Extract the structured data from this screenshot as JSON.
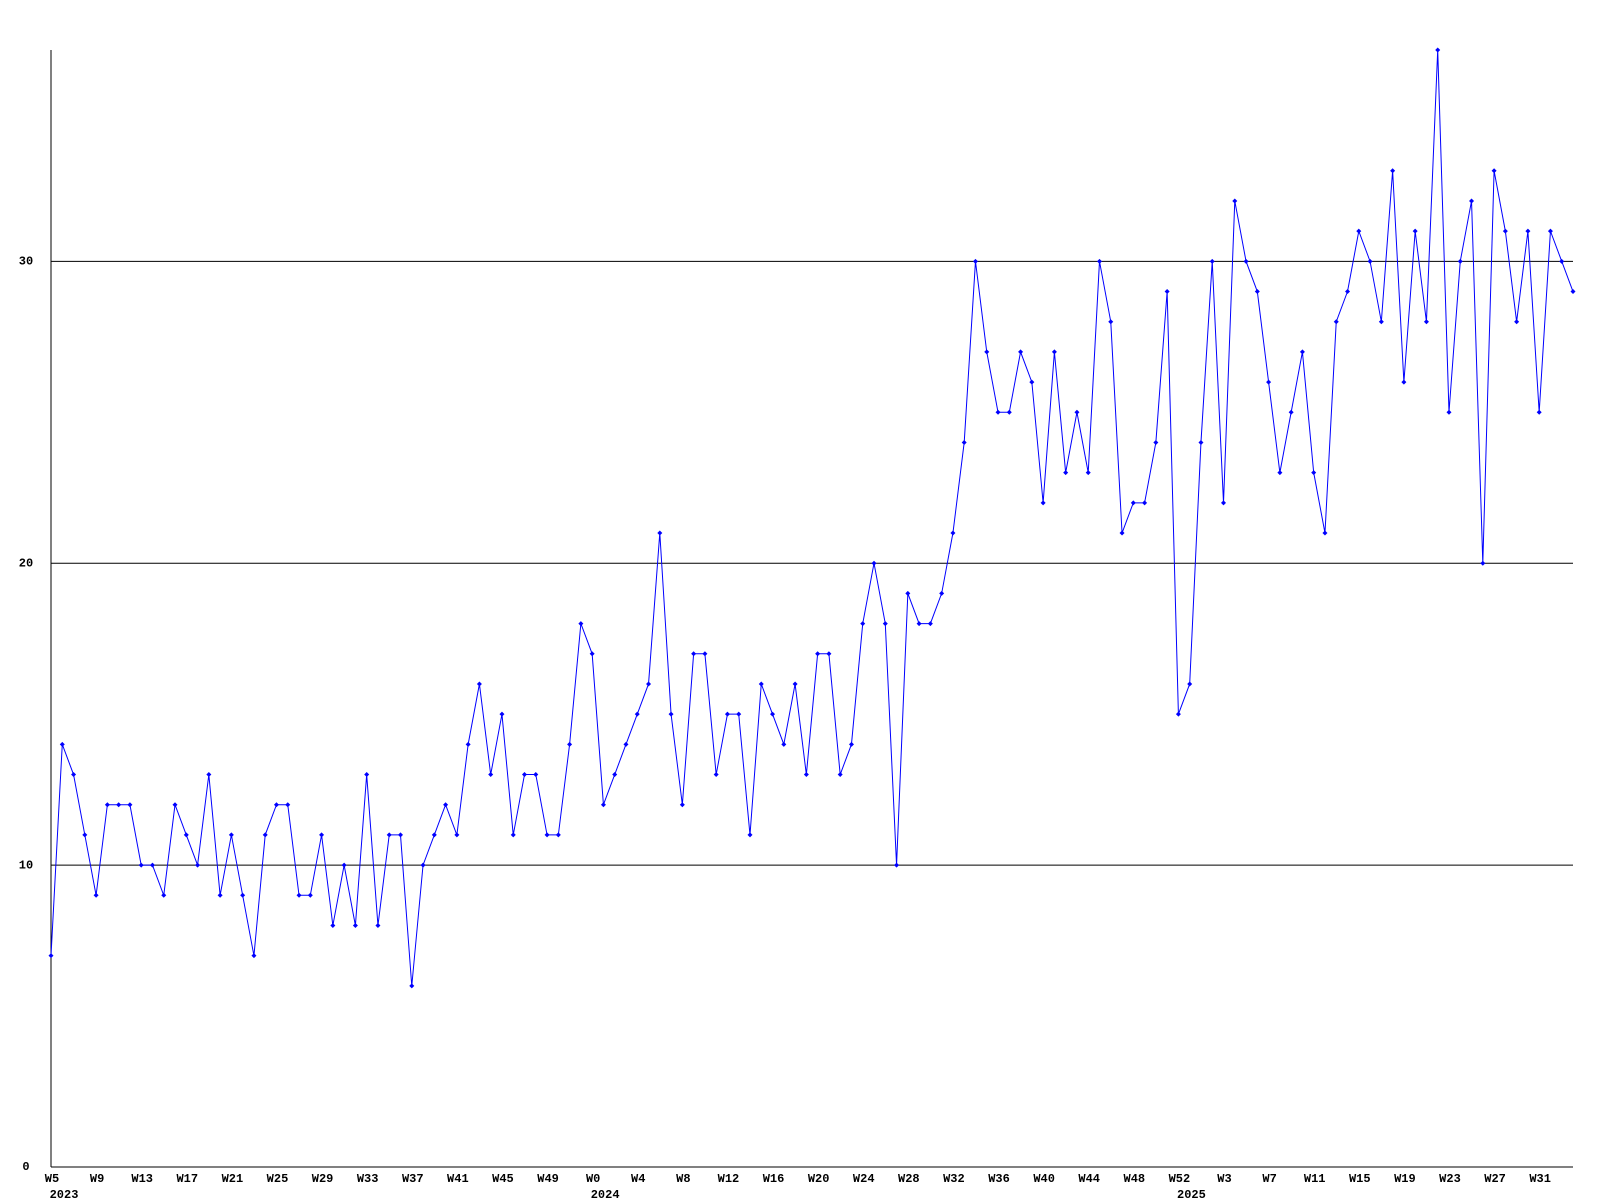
{
  "chart_data": {
    "type": "line",
    "categories": [
      "W5",
      null,
      null,
      null,
      "W9",
      null,
      null,
      null,
      "W13",
      null,
      null,
      null,
      "W17",
      null,
      null,
      null,
      "W21",
      null,
      null,
      null,
      "W25",
      null,
      null,
      null,
      "W29",
      null,
      null,
      null,
      "W33",
      null,
      null,
      null,
      "W37",
      null,
      null,
      null,
      "W41",
      null,
      null,
      null,
      "W45",
      null,
      null,
      null,
      "W49",
      null,
      null,
      null,
      "W0",
      null,
      null,
      null,
      "W4",
      null,
      null,
      null,
      "W8",
      null,
      null,
      null,
      "W12",
      null,
      null,
      null,
      "W16",
      null,
      null,
      null,
      "W20",
      null,
      null,
      null,
      "W24",
      null,
      null,
      null,
      "W28",
      null,
      null,
      null,
      "W32",
      null,
      null,
      null,
      "W36",
      null,
      null,
      null,
      "W40",
      null,
      null,
      null,
      "W44",
      null,
      null,
      null,
      "W48",
      null,
      null,
      null,
      "W52",
      null,
      null,
      null,
      "W3",
      null,
      null,
      null,
      "W7",
      null,
      null,
      null,
      "W11",
      null,
      null,
      null,
      "W15",
      null,
      null,
      null,
      "W19",
      null,
      null,
      null,
      "W23",
      null,
      null,
      null,
      "W27",
      null,
      null,
      null,
      "W31",
      null,
      null,
      null
    ],
    "category_years": [
      "2023",
      null,
      null,
      null,
      null,
      null,
      null,
      null,
      null,
      null,
      null,
      null,
      null,
      null,
      null,
      null,
      null,
      null,
      null,
      null,
      null,
      null,
      null,
      null,
      null,
      null,
      null,
      null,
      null,
      null,
      null,
      null,
      null,
      null,
      null,
      null,
      null,
      null,
      null,
      null,
      null,
      null,
      null,
      null,
      null,
      null,
      null,
      null,
      "2024",
      null,
      null,
      null,
      null,
      null,
      null,
      null,
      null,
      null,
      null,
      null,
      null,
      null,
      null,
      null,
      null,
      null,
      null,
      null,
      null,
      null,
      null,
      null,
      null,
      null,
      null,
      null,
      null,
      null,
      null,
      null,
      null,
      null,
      null,
      null,
      null,
      null,
      null,
      null,
      null,
      null,
      null,
      null,
      null,
      null,
      null,
      null,
      null,
      null,
      null,
      null,
      "2025",
      null,
      null,
      null,
      null,
      null,
      null,
      null,
      null,
      null,
      null,
      null,
      null,
      null,
      null,
      null,
      null,
      null,
      null,
      null,
      null,
      null,
      null,
      null,
      null,
      null,
      null,
      null,
      null,
      null,
      null,
      null,
      null,
      null,
      null,
      null
    ],
    "values": [
      7,
      14,
      13,
      11,
      9,
      12,
      12,
      12,
      10,
      10,
      9,
      12,
      11,
      10,
      13,
      9,
      11,
      9,
      7,
      11,
      12,
      12,
      9,
      9,
      11,
      8,
      10,
      8,
      13,
      8,
      11,
      11,
      6,
      10,
      11,
      12,
      11,
      14,
      16,
      13,
      15,
      11,
      13,
      13,
      11,
      11,
      14,
      18,
      17,
      12,
      13,
      14,
      15,
      16,
      21,
      15,
      12,
      17,
      17,
      13,
      15,
      15,
      11,
      16,
      15,
      14,
      16,
      13,
      17,
      17,
      13,
      14,
      18,
      20,
      18,
      10,
      19,
      18,
      18,
      19,
      21,
      24,
      30,
      27,
      25,
      25,
      27,
      26,
      22,
      27,
      23,
      25,
      23,
      30,
      28,
      21,
      22,
      22,
      24,
      29,
      15,
      16,
      24,
      30,
      22,
      32,
      30,
      29,
      26,
      23,
      25,
      27,
      23,
      21,
      28,
      29,
      31,
      30,
      28,
      33,
      26,
      31,
      28,
      37,
      25,
      30,
      32,
      20,
      33,
      31,
      28,
      31,
      25,
      31,
      30,
      29
    ],
    "color": "#0000ff",
    "ylim": [
      0,
      37
    ],
    "yticks": [
      0,
      10,
      20,
      30
    ],
    "grid": true
  }
}
